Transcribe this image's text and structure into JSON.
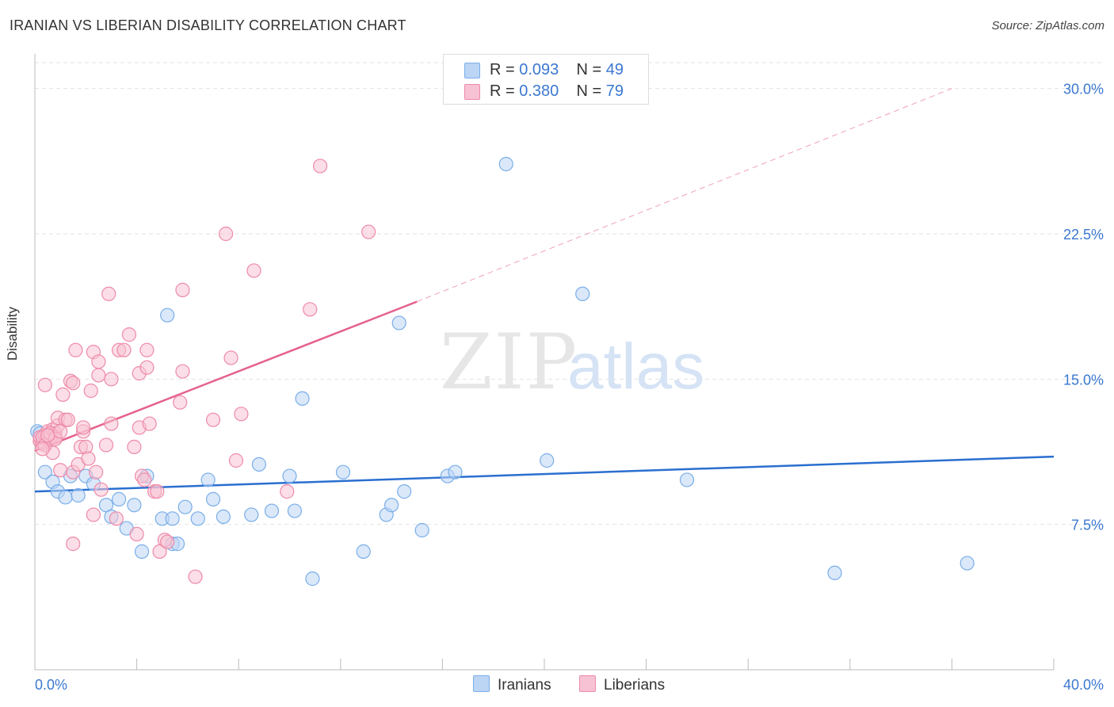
{
  "title": "IRANIAN VS LIBERIAN DISABILITY CORRELATION CHART",
  "source": "Source: ZipAtlas.com",
  "watermark": {
    "zip": "ZIP",
    "atlas": "atlas"
  },
  "legend": [
    {
      "r_label": "R = ",
      "r_value": "0.093",
      "n_label": "N = ",
      "n_value": "49"
    },
    {
      "r_label": "R = ",
      "r_value": "0.380",
      "n_label": "N = ",
      "n_value": "79"
    }
  ],
  "bottom_legend": [
    "Iranians",
    "Liberians"
  ],
  "chart_data": {
    "type": "scatter",
    "title": "IRANIAN VS LIBERIAN DISABILITY CORRELATION CHART",
    "xlabel": "",
    "ylabel": "Disability",
    "xlim": [
      0,
      40
    ],
    "ylim": [
      0,
      31.5
    ],
    "x_tick_labels": [
      "0.0%",
      "40.0%"
    ],
    "y_ticks": [
      7.5,
      15.0,
      22.5,
      30.0
    ],
    "y_tick_labels": [
      "7.5%",
      "15.0%",
      "22.5%",
      "30.0%"
    ],
    "grid": true,
    "legend_position": "top-center",
    "colors": {
      "iranians": "#7aaee8",
      "iranians_fill": "#bcd5f5",
      "iranians_line": "#2a6fd0",
      "liberians": "#ee8aa8",
      "liberians_fill": "#f7c2d3",
      "liberians_line": "#e5628d",
      "axis_text": "#3b78d0"
    },
    "series": [
      {
        "name": "Iranians",
        "points": [
          [
            0.1,
            12.3
          ],
          [
            0.4,
            10.2
          ],
          [
            0.7,
            9.7
          ],
          [
            0.9,
            9.2
          ],
          [
            1.2,
            8.9
          ],
          [
            1.4,
            10.0
          ],
          [
            1.7,
            9.0
          ],
          [
            2.0,
            10.0
          ],
          [
            2.3,
            9.6
          ],
          [
            2.8,
            8.5
          ],
          [
            3.3,
            8.8
          ],
          [
            3.0,
            7.9
          ],
          [
            3.6,
            7.3
          ],
          [
            3.9,
            8.5
          ],
          [
            4.2,
            6.1
          ],
          [
            4.4,
            10.0
          ],
          [
            5.0,
            7.8
          ],
          [
            5.2,
            18.3
          ],
          [
            5.4,
            7.8
          ],
          [
            5.4,
            6.5
          ],
          [
            5.6,
            6.5
          ],
          [
            5.9,
            8.4
          ],
          [
            6.4,
            7.8
          ],
          [
            6.8,
            9.8
          ],
          [
            7.0,
            8.8
          ],
          [
            7.4,
            7.9
          ],
          [
            8.5,
            8.0
          ],
          [
            8.8,
            10.6
          ],
          [
            9.3,
            8.2
          ],
          [
            10.0,
            10.0
          ],
          [
            10.2,
            8.2
          ],
          [
            10.5,
            14.0
          ],
          [
            10.9,
            4.7
          ],
          [
            12.1,
            10.2
          ],
          [
            12.9,
            6.1
          ],
          [
            13.8,
            8.0
          ],
          [
            14.0,
            8.5
          ],
          [
            14.3,
            17.9
          ],
          [
            14.5,
            9.2
          ],
          [
            15.2,
            7.2
          ],
          [
            16.2,
            10.0
          ],
          [
            16.5,
            10.2
          ],
          [
            18.5,
            26.1
          ],
          [
            20.1,
            10.8
          ],
          [
            21.5,
            19.4
          ],
          [
            25.6,
            9.8
          ],
          [
            31.4,
            5.0
          ],
          [
            36.6,
            5.5
          ],
          [
            0.2,
            12.2
          ]
        ]
      },
      {
        "name": "Liberians",
        "points": [
          [
            0.2,
            11.8
          ],
          [
            0.2,
            12.0
          ],
          [
            0.3,
            11.7
          ],
          [
            0.4,
            12.1
          ],
          [
            0.4,
            14.7
          ],
          [
            0.5,
            12.3
          ],
          [
            0.5,
            11.9
          ],
          [
            0.6,
            12.0
          ],
          [
            0.7,
            12.4
          ],
          [
            0.7,
            11.2
          ],
          [
            0.8,
            12.2
          ],
          [
            0.8,
            12.0
          ],
          [
            0.9,
            12.6
          ],
          [
            0.9,
            13.0
          ],
          [
            1.0,
            10.3
          ],
          [
            1.1,
            14.2
          ],
          [
            1.2,
            12.9
          ],
          [
            1.3,
            12.9
          ],
          [
            1.4,
            14.9
          ],
          [
            1.5,
            14.8
          ],
          [
            1.5,
            6.5
          ],
          [
            1.5,
            10.2
          ],
          [
            1.6,
            16.5
          ],
          [
            1.7,
            10.6
          ],
          [
            1.8,
            11.5
          ],
          [
            1.9,
            12.3
          ],
          [
            1.9,
            12.5
          ],
          [
            2.0,
            11.5
          ],
          [
            2.1,
            10.9
          ],
          [
            2.2,
            14.4
          ],
          [
            2.3,
            16.4
          ],
          [
            2.3,
            8.0
          ],
          [
            2.4,
            10.2
          ],
          [
            2.5,
            15.2
          ],
          [
            2.5,
            15.9
          ],
          [
            2.6,
            9.3
          ],
          [
            2.8,
            11.6
          ],
          [
            2.9,
            19.4
          ],
          [
            3.0,
            12.7
          ],
          [
            3.0,
            15.0
          ],
          [
            3.2,
            7.8
          ],
          [
            3.3,
            16.5
          ],
          [
            3.5,
            16.5
          ],
          [
            3.7,
            17.3
          ],
          [
            3.9,
            11.5
          ],
          [
            4.0,
            7.0
          ],
          [
            4.1,
            15.3
          ],
          [
            4.1,
            12.5
          ],
          [
            4.2,
            10.0
          ],
          [
            4.3,
            9.8
          ],
          [
            4.4,
            15.6
          ],
          [
            4.4,
            16.5
          ],
          [
            4.5,
            12.7
          ],
          [
            4.7,
            9.2
          ],
          [
            4.8,
            9.2
          ],
          [
            4.9,
            6.1
          ],
          [
            5.1,
            6.7
          ],
          [
            5.2,
            6.6
          ],
          [
            5.7,
            13.8
          ],
          [
            5.8,
            19.6
          ],
          [
            5.8,
            15.4
          ],
          [
            6.3,
            4.8
          ],
          [
            7.0,
            12.9
          ],
          [
            7.5,
            22.5
          ],
          [
            7.7,
            16.1
          ],
          [
            7.9,
            10.8
          ],
          [
            8.1,
            13.2
          ],
          [
            8.6,
            20.6
          ],
          [
            9.9,
            9.2
          ],
          [
            10.8,
            18.6
          ],
          [
            11.2,
            26.0
          ],
          [
            13.1,
            22.6
          ],
          [
            0.3,
            12.0
          ],
          [
            0.4,
            11.6
          ],
          [
            0.6,
            12.2
          ],
          [
            0.8,
            11.9
          ],
          [
            1.0,
            12.3
          ],
          [
            0.3,
            11.4
          ],
          [
            0.5,
            12.1
          ]
        ]
      }
    ],
    "trend_lines": [
      {
        "name": "Iranians",
        "x": [
          0,
          40
        ],
        "y": [
          9.2,
          11.0
        ],
        "style": "solid"
      },
      {
        "name": "Liberians",
        "x": [
          0,
          15
        ],
        "y": [
          11.3,
          19.0
        ],
        "style": "solid"
      },
      {
        "name": "Liberians",
        "x": [
          15,
          36
        ],
        "y": [
          19.0,
          30.0
        ],
        "style": "dashed"
      }
    ]
  }
}
